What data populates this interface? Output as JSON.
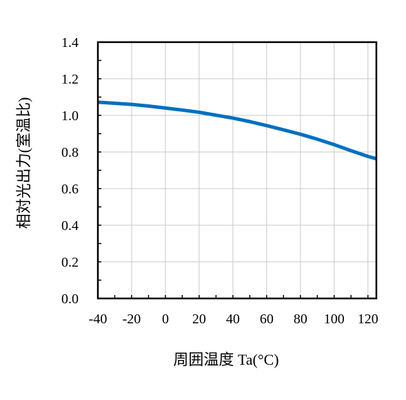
{
  "chart_data": {
    "type": "line",
    "title": "",
    "xlabel": "周囲温度 Ta(°C)",
    "ylabel": "相対光出力(室温比)",
    "xlim": [
      -40,
      125
    ],
    "ylim": [
      0,
      1.4
    ],
    "xticks": [
      -40,
      -20,
      0,
      20,
      40,
      60,
      80,
      100,
      120
    ],
    "yticks": [
      0.0,
      0.2,
      0.4,
      0.6,
      0.8,
      1.0,
      1.2,
      1.4
    ],
    "xtick_labels": [
      "-40",
      "-20",
      "0",
      "20",
      "40",
      "60",
      "80",
      "100",
      "120"
    ],
    "ytick_labels": [
      "0.0",
      "0.2",
      "0.4",
      "0.6",
      "0.8",
      "1.0",
      "1.2",
      "1.4"
    ],
    "grid": true,
    "legend": "none",
    "series": [
      {
        "color": "#0070C0",
        "x": [
          -40,
          -30,
          -20,
          -10,
          0,
          10,
          20,
          30,
          40,
          50,
          60,
          70,
          80,
          90,
          100,
          110,
          120,
          125
        ],
        "y": [
          1.072,
          1.066,
          1.06,
          1.051,
          1.04,
          1.029,
          1.017,
          1.001,
          0.985,
          0.966,
          0.944,
          0.921,
          0.897,
          0.87,
          0.84,
          0.807,
          0.776,
          0.763
        ]
      }
    ]
  }
}
